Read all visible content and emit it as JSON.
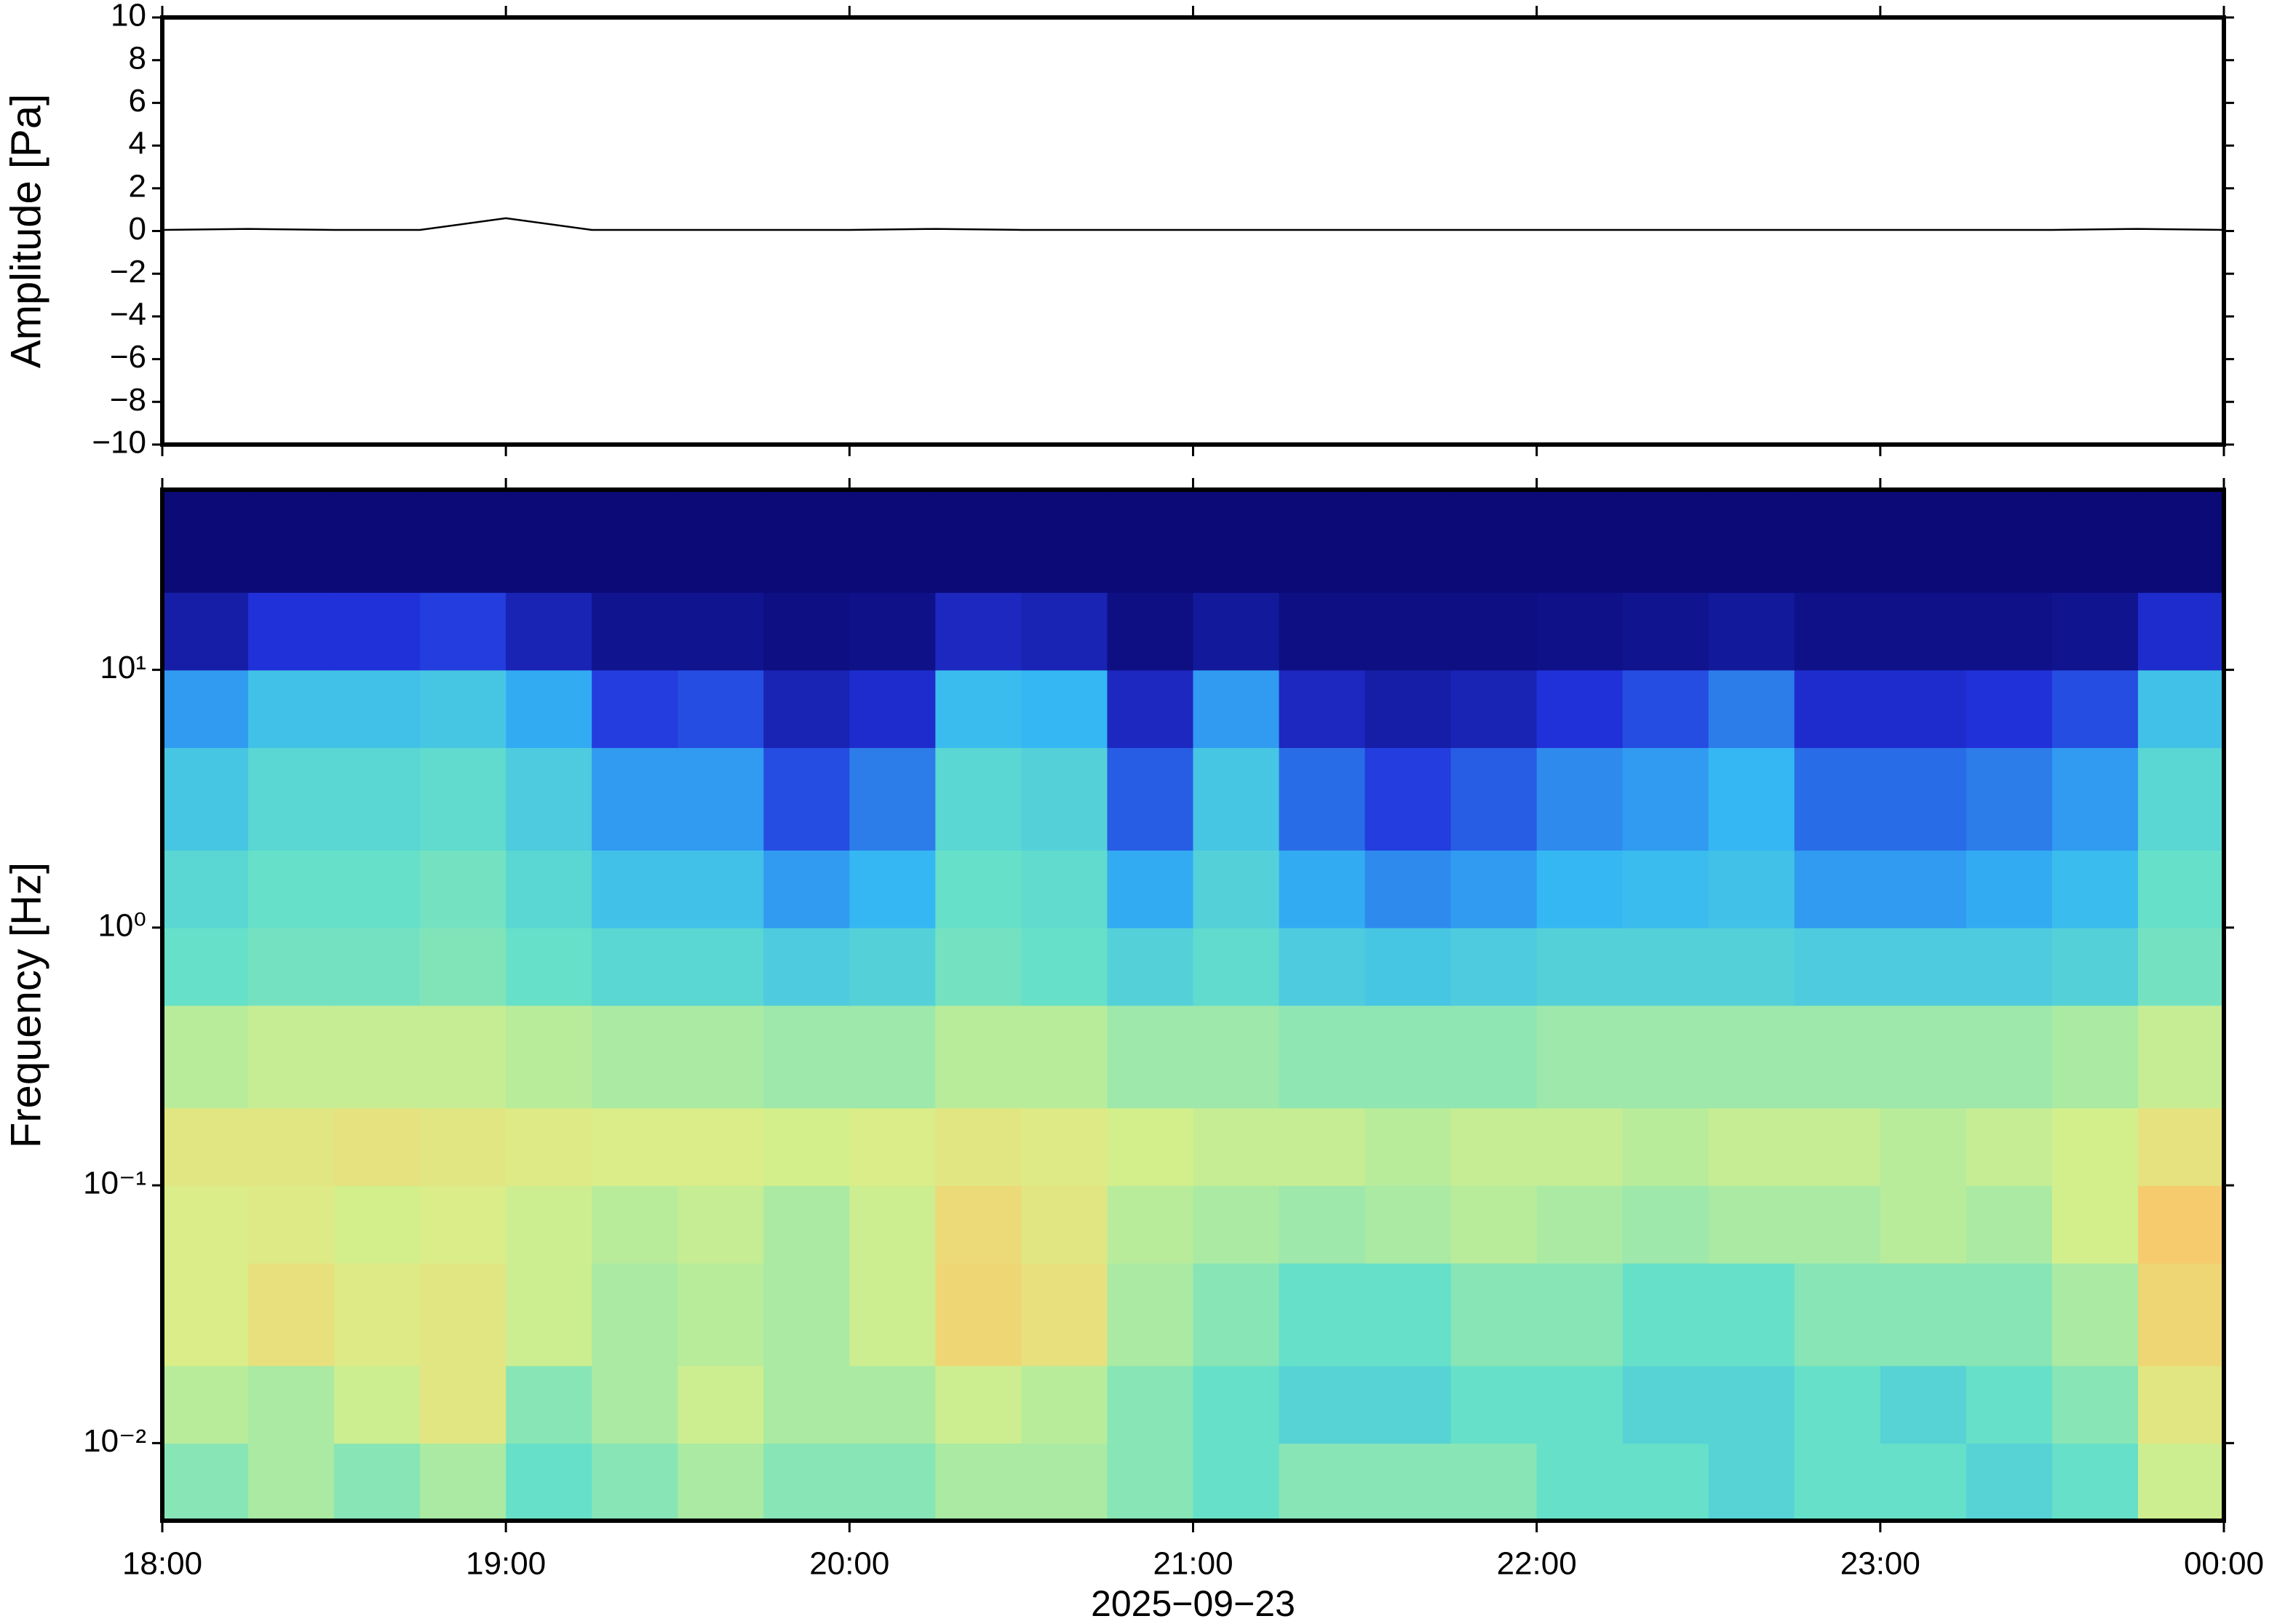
{
  "chart_data": [
    {
      "type": "line",
      "ylabel": "Amplitude [Pa]",
      "xlim": [
        18,
        24
      ],
      "xticks": [
        18,
        19,
        20,
        21,
        22,
        23,
        24
      ],
      "ylim": [
        -10,
        10
      ],
      "yticks": [
        {
          "value": -10,
          "label": "−10"
        },
        {
          "value": -8,
          "label": "−8"
        },
        {
          "value": -6,
          "label": "−6"
        },
        {
          "value": -4,
          "label": "−4"
        },
        {
          "value": -2,
          "label": "−2"
        },
        0,
        2,
        4,
        6,
        8,
        10
      ],
      "series": [
        {
          "color": "#000000",
          "x": [
            18,
            18.25,
            18.5,
            18.75,
            19,
            19.25,
            19.5,
            19.75,
            20,
            20.25,
            20.5,
            20.75,
            21,
            21.25,
            21.5,
            21.75,
            22,
            22.25,
            22.5,
            22.75,
            23,
            23.25,
            23.5,
            23.75,
            24
          ],
          "values": [
            0.05,
            0.1,
            0.05,
            0.05,
            0.6,
            0.05,
            0.05,
            0.05,
            0.05,
            0.1,
            0.05,
            0.05,
            0.05,
            0.05,
            0.05,
            0.05,
            0.05,
            0.05,
            0.05,
            0.05,
            0.05,
            0.05,
            0.05,
            0.1,
            0.05
          ]
        }
      ]
    },
    {
      "type": "heatmap",
      "ylabel": "Frequency [Hz]",
      "xlabel": "2025−09−23",
      "xlim": [
        18,
        24
      ],
      "xticks": [
        {
          "value": 18,
          "label": "18:00"
        },
        {
          "value": 19,
          "label": "19:00"
        },
        {
          "value": 20,
          "label": "20:00"
        },
        {
          "value": 21,
          "label": "21:00"
        },
        {
          "value": 22,
          "label": "22:00"
        },
        {
          "value": 23,
          "label": "23:00"
        },
        {
          "value": 24,
          "label": "00:00"
        }
      ],
      "ylim": [
        0.005,
        50
      ],
      "yscale": "log",
      "yticks": [
        {
          "value": 0.01,
          "label": "10⁻²"
        },
        {
          "value": 0.1,
          "label": "10⁻¹"
        },
        {
          "value": 1,
          "label": "10⁰"
        },
        {
          "value": 10,
          "label": "10¹"
        }
      ],
      "x": [
        18,
        18.25,
        18.5,
        18.75,
        19,
        19.25,
        19.5,
        19.75,
        20,
        20.25,
        20.5,
        20.75,
        21,
        21.25,
        21.5,
        21.75,
        22,
        22.25,
        22.5,
        22.75,
        23,
        23.25,
        23.5,
        23.75,
        24
      ],
      "y": [
        0.005,
        0.01,
        0.02,
        0.05,
        0.1,
        0.2,
        0.5,
        1,
        2,
        5,
        10,
        20,
        50
      ],
      "zlim": [
        0,
        1
      ],
      "colormap": [
        "#0b0a76",
        "#2233dd",
        "#33b5f5",
        "#66e0c8",
        "#d8f08a",
        "#f5d070",
        "#f0a050"
      ],
      "z": [
        [
          0.55,
          0.6,
          0.55,
          0.6,
          0.5,
          0.55,
          0.6,
          0.55,
          0.55,
          0.6,
          0.6,
          0.55,
          0.5,
          0.55,
          0.55,
          0.55,
          0.5,
          0.5,
          0.45,
          0.5,
          0.5,
          0.45,
          0.5,
          0.65
        ],
        [
          0.62,
          0.6,
          0.65,
          0.72,
          0.55,
          0.6,
          0.65,
          0.6,
          0.6,
          0.65,
          0.62,
          0.55,
          0.5,
          0.45,
          0.45,
          0.5,
          0.5,
          0.45,
          0.45,
          0.5,
          0.45,
          0.5,
          0.55,
          0.72
        ],
        [
          0.68,
          0.75,
          0.7,
          0.72,
          0.65,
          0.6,
          0.62,
          0.6,
          0.65,
          0.8,
          0.75,
          0.6,
          0.55,
          0.5,
          0.5,
          0.55,
          0.55,
          0.5,
          0.5,
          0.55,
          0.55,
          0.55,
          0.6,
          0.8
        ],
        [
          0.68,
          0.7,
          0.66,
          0.68,
          0.65,
          0.62,
          0.64,
          0.6,
          0.65,
          0.78,
          0.72,
          0.62,
          0.6,
          0.58,
          0.6,
          0.62,
          0.6,
          0.58,
          0.6,
          0.6,
          0.62,
          0.6,
          0.66,
          0.85
        ],
        [
          0.72,
          0.72,
          0.74,
          0.72,
          0.7,
          0.68,
          0.68,
          0.66,
          0.68,
          0.72,
          0.7,
          0.66,
          0.64,
          0.64,
          0.62,
          0.64,
          0.64,
          0.62,
          0.64,
          0.64,
          0.62,
          0.64,
          0.66,
          0.74
        ],
        [
          0.62,
          0.64,
          0.64,
          0.64,
          0.62,
          0.6,
          0.6,
          0.58,
          0.58,
          0.62,
          0.62,
          0.58,
          0.58,
          0.56,
          0.56,
          0.56,
          0.58,
          0.58,
          0.58,
          0.58,
          0.58,
          0.58,
          0.6,
          0.64
        ],
        [
          0.5,
          0.52,
          0.52,
          0.54,
          0.5,
          0.46,
          0.46,
          0.42,
          0.44,
          0.52,
          0.5,
          0.44,
          0.48,
          0.42,
          0.4,
          0.42,
          0.44,
          0.44,
          0.44,
          0.42,
          0.42,
          0.42,
          0.44,
          0.52
        ],
        [
          0.46,
          0.5,
          0.5,
          0.52,
          0.46,
          0.38,
          0.38,
          0.3,
          0.34,
          0.5,
          0.48,
          0.32,
          0.44,
          0.32,
          0.28,
          0.3,
          0.34,
          0.36,
          0.38,
          0.3,
          0.3,
          0.32,
          0.36,
          0.5
        ],
        [
          0.4,
          0.46,
          0.46,
          0.48,
          0.42,
          0.3,
          0.3,
          0.2,
          0.26,
          0.46,
          0.44,
          0.22,
          0.4,
          0.24,
          0.18,
          0.22,
          0.28,
          0.3,
          0.34,
          0.24,
          0.24,
          0.26,
          0.3,
          0.46
        ],
        [
          0.3,
          0.38,
          0.38,
          0.4,
          0.32,
          0.18,
          0.2,
          0.1,
          0.14,
          0.36,
          0.34,
          0.12,
          0.3,
          0.12,
          0.08,
          0.1,
          0.16,
          0.2,
          0.26,
          0.14,
          0.14,
          0.16,
          0.2,
          0.38
        ],
        [
          0.08,
          0.16,
          0.16,
          0.18,
          0.1,
          0.04,
          0.04,
          0.02,
          0.03,
          0.12,
          0.1,
          0.02,
          0.06,
          0.02,
          0.02,
          0.02,
          0.03,
          0.04,
          0.06,
          0.03,
          0.03,
          0.03,
          0.04,
          0.14
        ],
        [
          0,
          0,
          0,
          0,
          0,
          0,
          0,
          0,
          0,
          0,
          0,
          0,
          0,
          0,
          0,
          0,
          0,
          0,
          0,
          0,
          0,
          0,
          0,
          0
        ]
      ]
    }
  ]
}
